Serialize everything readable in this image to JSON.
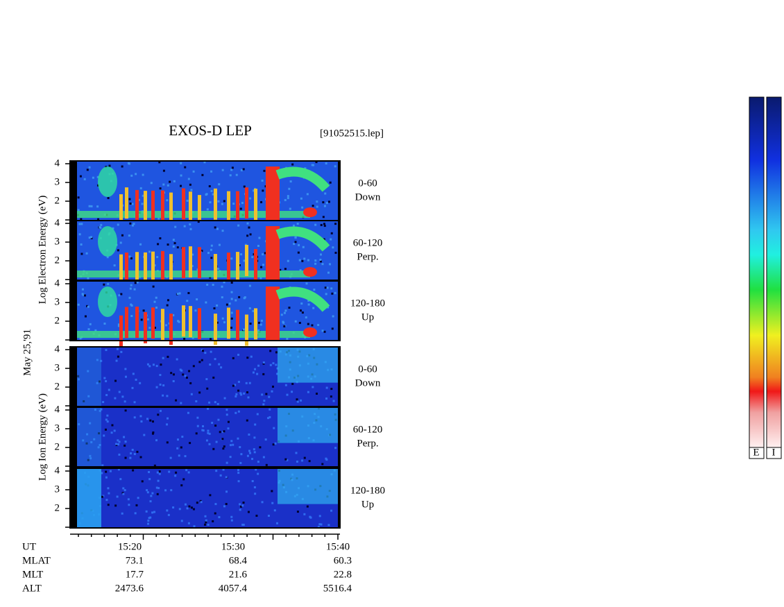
{
  "header": {
    "title": "EXOS-D LEP",
    "file": "[91052515.lep]"
  },
  "date": "May 25,'91",
  "axes": {
    "electron_label": "Log Electron Energy (eV)",
    "ion_label": "Log Ion Energy (eV)",
    "energy_ticks": [
      4,
      3,
      2
    ]
  },
  "panels": [
    {
      "range": "0-60",
      "direction": "Down"
    },
    {
      "range": "60-120",
      "direction": "Perp."
    },
    {
      "range": "120-180",
      "direction": "Up"
    },
    {
      "range": "0-60",
      "direction": "Down"
    },
    {
      "range": "60-120",
      "direction": "Perp."
    },
    {
      "range": "120-180",
      "direction": "Up"
    }
  ],
  "ephemeris": {
    "rows": [
      {
        "name": "UT",
        "values": [
          "15:20",
          "15:30",
          "15:40"
        ]
      },
      {
        "name": "MLAT",
        "values": [
          73.1,
          68.4,
          60.3
        ]
      },
      {
        "name": "MLT",
        "values": [
          17.7,
          21.6,
          22.8
        ]
      },
      {
        "name": "ALT",
        "values": [
          2473.6,
          4057.4,
          5516.4
        ]
      }
    ]
  },
  "colorbar": {
    "labels": [
      "E",
      "I"
    ]
  }
}
